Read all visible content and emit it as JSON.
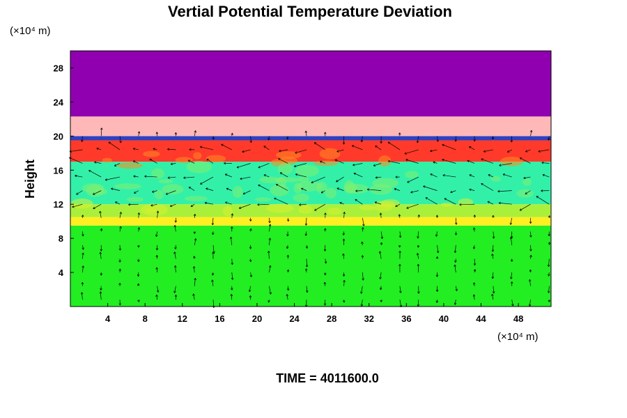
{
  "chart_data": {
    "type": "heatmap",
    "title": "Vertial Potential Temperature Deviation",
    "ylabel": "Height",
    "y_unit": "(×10⁴ m)",
    "x_unit": "(×10⁴ m)",
    "footer": "TIME = 4011600.0",
    "xlim": [
      0,
      51.5
    ],
    "ylim": [
      0,
      30
    ],
    "x_ticks": [
      4,
      8,
      12,
      16,
      20,
      24,
      28,
      32,
      36,
      40,
      44,
      48
    ],
    "y_ticks": [
      4,
      8,
      12,
      16,
      20,
      24,
      28
    ],
    "grid": false,
    "legend": "none",
    "layers": [
      {
        "name": "lower green",
        "y_from": 0,
        "y_to": 9.5,
        "color": "#22ee22"
      },
      {
        "name": "yellow band",
        "y_from": 9.5,
        "y_to": 10.5,
        "color": "#ffee22"
      },
      {
        "name": "lower green-yellow",
        "y_from": 10.5,
        "y_to": 12,
        "color": "#aaf03a"
      },
      {
        "name": "cyan core",
        "y_from": 12,
        "y_to": 17,
        "color": "#33f0a8"
      },
      {
        "name": "red band",
        "y_from": 17,
        "y_to": 19.5,
        "color": "#ff3a2a"
      },
      {
        "name": "blue line",
        "y_from": 19.5,
        "y_to": 20,
        "color": "#3040c0"
      },
      {
        "name": "pink band",
        "y_from": 20,
        "y_to": 22.3,
        "color": "#ffb8b8"
      },
      {
        "name": "upper purple",
        "y_from": 22.3,
        "y_to": 30,
        "color": "#9000b0"
      }
    ]
  }
}
